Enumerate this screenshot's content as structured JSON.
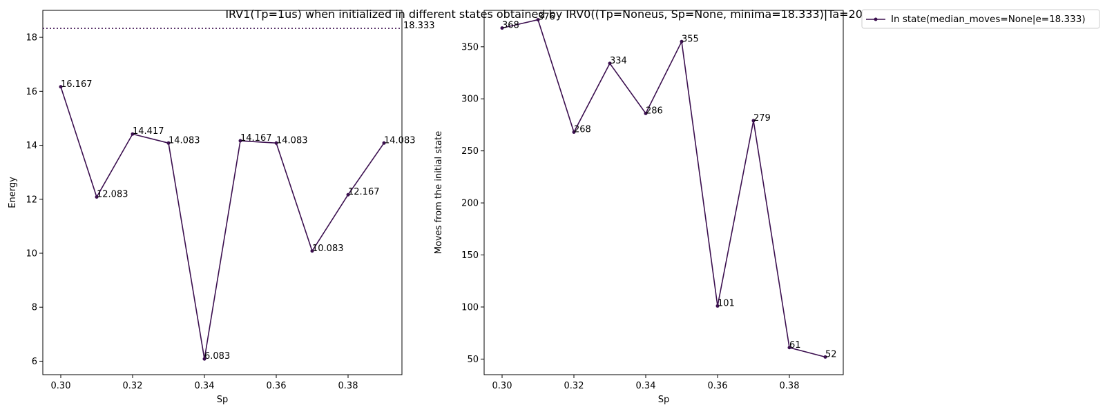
{
  "figure": {
    "title": "IRV1(Tp=1us) when initialized in different states obtained by IRV0((Tp=Noneus, Sp=None, minima=18.333)|Ta=20us)"
  },
  "legend": {
    "label": "In state(median_moves=None|e=18.333)",
    "placement": "outside-top-right"
  },
  "colors": {
    "series": "#3b0f4f",
    "axis": "#000000"
  },
  "chart_data": [
    {
      "type": "line",
      "xlabel": "Sp",
      "ylabel": "Energy",
      "xlim": [
        0.295,
        0.395
      ],
      "ylim": [
        5.5,
        19.0
      ],
      "xticks": [
        0.3,
        0.32,
        0.34,
        0.36,
        0.38
      ],
      "xtick_labels": [
        "0.30",
        "0.32",
        "0.34",
        "0.36",
        "0.38"
      ],
      "yticks": [
        6,
        8,
        10,
        12,
        14,
        16,
        18
      ],
      "ytick_labels": [
        "6",
        "8",
        "10",
        "12",
        "14",
        "16",
        "18"
      ],
      "x": [
        0.3,
        0.31,
        0.32,
        0.33,
        0.34,
        0.35,
        0.36,
        0.37,
        0.38,
        0.39
      ],
      "y": [
        16.167,
        12.083,
        14.417,
        14.083,
        6.083,
        14.167,
        14.083,
        10.083,
        12.167,
        14.083
      ],
      "point_labels": [
        "16.167",
        "12.083",
        "14.417",
        "14.083",
        "6.083",
        "14.167",
        "14.083",
        "10.083",
        "12.167",
        "14.083"
      ],
      "reference_line": {
        "y": 18.333,
        "label": "18.333",
        "style": "dotted"
      },
      "grid": false
    },
    {
      "type": "line",
      "xlabel": "Sp",
      "ylabel": "Moves from the initial state",
      "xlim": [
        0.295,
        0.395
      ],
      "ylim": [
        35,
        385
      ],
      "xticks": [
        0.3,
        0.32,
        0.34,
        0.36,
        0.38
      ],
      "xtick_labels": [
        "0.30",
        "0.32",
        "0.34",
        "0.36",
        "0.38"
      ],
      "yticks": [
        50,
        100,
        150,
        200,
        250,
        300,
        350
      ],
      "ytick_labels": [
        "50",
        "100",
        "150",
        "200",
        "250",
        "300",
        "350"
      ],
      "x": [
        0.3,
        0.31,
        0.32,
        0.33,
        0.34,
        0.35,
        0.36,
        0.37,
        0.38,
        0.39
      ],
      "y": [
        368,
        376,
        268,
        334,
        286,
        355,
        101,
        279,
        61,
        52
      ],
      "point_labels": [
        "368",
        "376",
        "268",
        "334",
        "286",
        "355",
        "101",
        "279",
        "61",
        "52"
      ],
      "grid": false
    }
  ]
}
